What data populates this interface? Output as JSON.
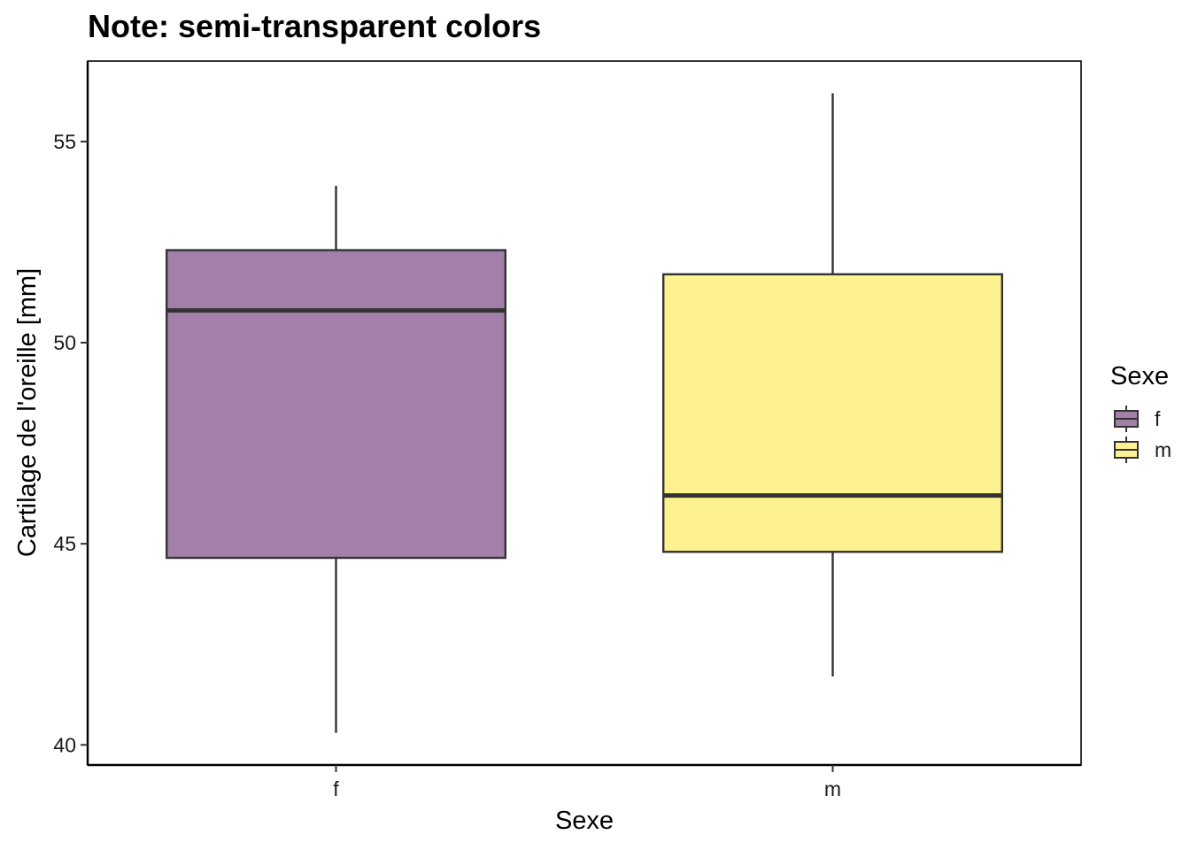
{
  "chart_data": {
    "type": "boxplot",
    "title": "Note: semi-transparent colors",
    "xlabel": "Sexe",
    "ylabel": "Cartilage de l'oreille  [mm]",
    "categories": [
      "f",
      "m"
    ],
    "series": [
      {
        "name": "f",
        "color": "#a380a9",
        "whisker_low": 40.3,
        "q1": 44.65,
        "median": 50.8,
        "q3": 52.3,
        "whisker_high": 53.9
      },
      {
        "name": "m",
        "color": "#fef18f",
        "whisker_low": 41.7,
        "q1": 44.8,
        "median": 46.2,
        "q3": 51.7,
        "whisker_high": 56.2
      }
    ],
    "ylim": [
      39.5,
      57.0
    ],
    "yticks": [
      40,
      45,
      50,
      55
    ],
    "grid": false,
    "legend": {
      "title": "Sexe",
      "position": "right",
      "entries": [
        "f",
        "m"
      ]
    },
    "box_outline_color": "#333333"
  }
}
